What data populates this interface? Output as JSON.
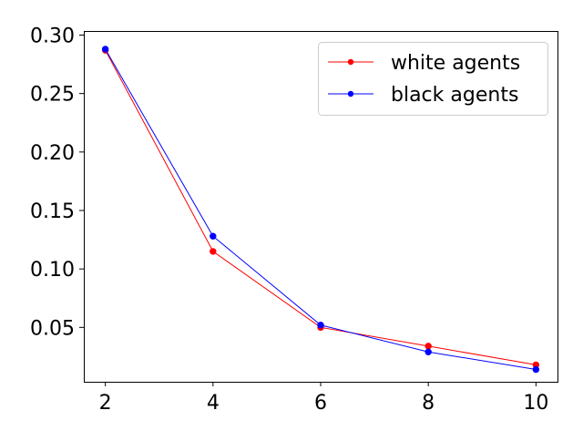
{
  "chart_data": {
    "type": "line",
    "title": "",
    "xlabel": "",
    "ylabel": "",
    "xlim": [
      1.6,
      10.4
    ],
    "ylim": [
      0.0035,
      0.3035
    ],
    "x_ticks": [
      2,
      4,
      6,
      8,
      10
    ],
    "x_tick_labels": [
      "2",
      "4",
      "6",
      "8",
      "10"
    ],
    "y_ticks": [
      0.05,
      0.1,
      0.15,
      0.2,
      0.25,
      0.3
    ],
    "y_tick_labels": [
      "0.05",
      "0.10",
      "0.15",
      "0.20",
      "0.25",
      "0.30"
    ],
    "grid": false,
    "legend_position": "top-right",
    "series": [
      {
        "name": "white agents",
        "color": "#ff0000",
        "marker": "circle",
        "x": [
          2,
          4,
          6,
          8,
          10
        ],
        "y": [
          0.287,
          0.115,
          0.05,
          0.034,
          0.018
        ]
      },
      {
        "name": "black agents",
        "color": "#0000ff",
        "marker": "circle",
        "x": [
          2,
          4,
          6,
          8,
          10
        ],
        "y": [
          0.288,
          0.128,
          0.052,
          0.029,
          0.014
        ]
      }
    ]
  }
}
